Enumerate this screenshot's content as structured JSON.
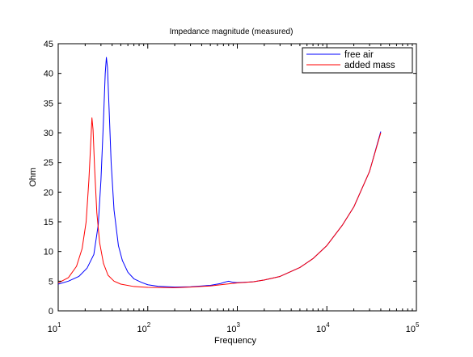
{
  "chart_data": {
    "type": "line",
    "title": "Impedance magnitude (measured)",
    "xlabel": "Frequency",
    "ylabel": "Ohm",
    "xscale": "log",
    "xlim": [
      10,
      100000
    ],
    "ylim": [
      0,
      45
    ],
    "y_ticks": [
      0,
      5,
      10,
      15,
      20,
      25,
      30,
      35,
      40,
      45
    ],
    "x_ticks": [
      {
        "value": 10,
        "base": "10",
        "exp": "1"
      },
      {
        "value": 100,
        "base": "10",
        "exp": "2"
      },
      {
        "value": 1000,
        "base": "10",
        "exp": "3"
      },
      {
        "value": 10000,
        "base": "10",
        "exp": "4"
      },
      {
        "value": 100000,
        "base": "10",
        "exp": "5"
      }
    ],
    "grid": false,
    "legend_position": "top-right",
    "series": [
      {
        "name": "free air",
        "color": "#0000ff",
        "points": [
          [
            10,
            4.5
          ],
          [
            13,
            5.0
          ],
          [
            17,
            5.8
          ],
          [
            21,
            7.2
          ],
          [
            25,
            9.5
          ],
          [
            28,
            14.5
          ],
          [
            30,
            22.0
          ],
          [
            32,
            32.0
          ],
          [
            33.5,
            40.0
          ],
          [
            34.5,
            42.7
          ],
          [
            35.5,
            41.0
          ],
          [
            37,
            34.0
          ],
          [
            39,
            25.0
          ],
          [
            42,
            17.0
          ],
          [
            47,
            11.0
          ],
          [
            52,
            8.5
          ],
          [
            60,
            6.5
          ],
          [
            70,
            5.4
          ],
          [
            85,
            4.8
          ],
          [
            100,
            4.4
          ],
          [
            130,
            4.15
          ],
          [
            200,
            4.0
          ],
          [
            300,
            4.05
          ],
          [
            500,
            4.3
          ],
          [
            650,
            4.6
          ],
          [
            750,
            4.9
          ],
          [
            800,
            5.0
          ],
          [
            900,
            4.8
          ],
          [
            1000,
            4.75
          ],
          [
            1500,
            4.9
          ],
          [
            2000,
            5.2
          ],
          [
            3000,
            5.8
          ],
          [
            5000,
            7.3
          ],
          [
            7000,
            8.8
          ],
          [
            10000,
            11.0
          ],
          [
            15000,
            14.5
          ],
          [
            20000,
            17.5
          ],
          [
            30000,
            23.5
          ],
          [
            40000,
            30.2
          ]
        ]
      },
      {
        "name": "added mass",
        "color": "#ff0000",
        "points": [
          [
            10,
            4.7
          ],
          [
            13,
            5.6
          ],
          [
            16,
            7.5
          ],
          [
            18.5,
            10.5
          ],
          [
            20.5,
            15.0
          ],
          [
            22,
            22.0
          ],
          [
            23.2,
            29.0
          ],
          [
            23.8,
            32.5
          ],
          [
            24.5,
            30.5
          ],
          [
            25.5,
            24.0
          ],
          [
            27,
            16.5
          ],
          [
            29,
            11.5
          ],
          [
            32,
            8.0
          ],
          [
            36,
            6.0
          ],
          [
            42,
            5.0
          ],
          [
            50,
            4.5
          ],
          [
            70,
            4.1
          ],
          [
            100,
            3.95
          ],
          [
            200,
            3.9
          ],
          [
            300,
            4.0
          ],
          [
            500,
            4.2
          ],
          [
            700,
            4.45
          ],
          [
            1000,
            4.7
          ],
          [
            1500,
            4.9
          ],
          [
            2000,
            5.2
          ],
          [
            3000,
            5.8
          ],
          [
            5000,
            7.3
          ],
          [
            7000,
            8.8
          ],
          [
            10000,
            11.0
          ],
          [
            15000,
            14.5
          ],
          [
            20000,
            17.5
          ],
          [
            30000,
            23.5
          ],
          [
            40000,
            30.0
          ]
        ]
      }
    ]
  }
}
